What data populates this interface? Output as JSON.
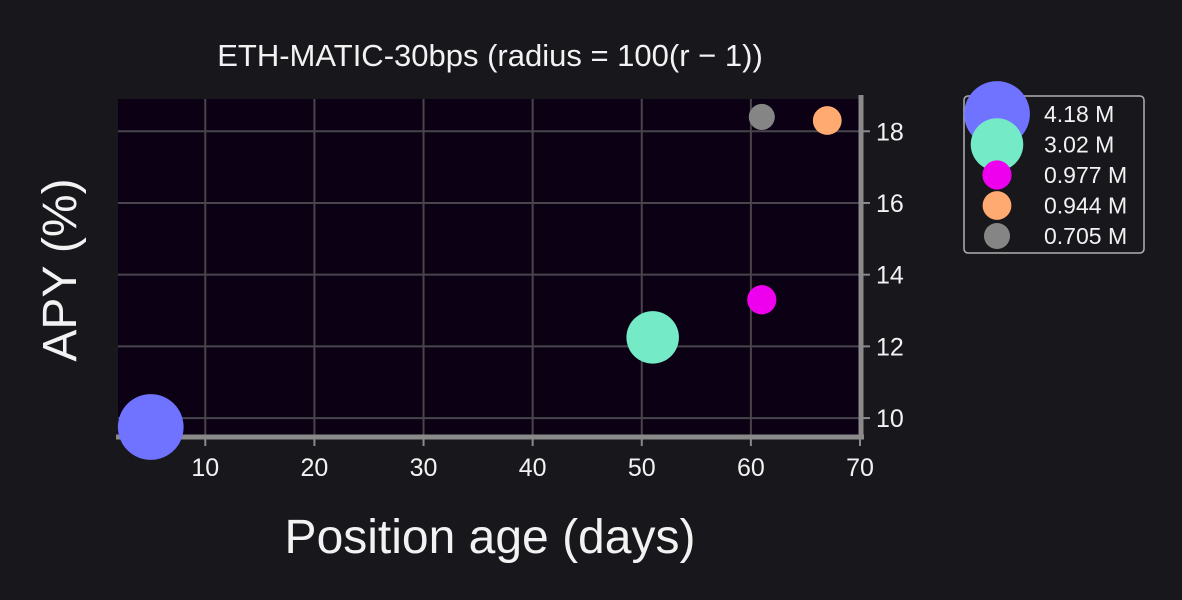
{
  "chart_data": {
    "type": "scatter",
    "title": "ETH-MATIC-30bps (radius = 100(r − 1))",
    "xlabel": "Position age (days)",
    "ylabel": "APY (%)",
    "xlim": [
      2,
      70
    ],
    "ylim": [
      9.5,
      18.9
    ],
    "x_ticks": [
      10,
      20,
      30,
      40,
      50,
      60,
      70
    ],
    "y_ticks": [
      10,
      12,
      14,
      16,
      18
    ],
    "y_axis_side": "right",
    "grid": true,
    "legend_position": "outside top-right",
    "series": [
      {
        "name": "4.18 M",
        "x": 5,
        "y": 9.75,
        "r": 1.0418,
        "color": "#7073ff"
      },
      {
        "name": "3.02 M",
        "x": 51,
        "y": 12.25,
        "r": 1.0302,
        "color": "#74ebc6"
      },
      {
        "name": "0.977 M",
        "x": 61,
        "y": 13.3,
        "r": 1.00977,
        "color": "#ee00ee"
      },
      {
        "name": "0.944 M",
        "x": 67,
        "y": 18.3,
        "r": 1.00944,
        "color": "#ffaa70"
      },
      {
        "name": "0.705 M",
        "x": 61,
        "y": 18.4,
        "r": 1.00705,
        "color": "#858585"
      }
    ],
    "colors": {
      "page_background": "#18171c",
      "plot_background": "#0b0014",
      "grid": "#48464c",
      "spine": "#8a8a8a",
      "text": "#f2f2f2",
      "legend_border": "#b0b0b0"
    }
  }
}
